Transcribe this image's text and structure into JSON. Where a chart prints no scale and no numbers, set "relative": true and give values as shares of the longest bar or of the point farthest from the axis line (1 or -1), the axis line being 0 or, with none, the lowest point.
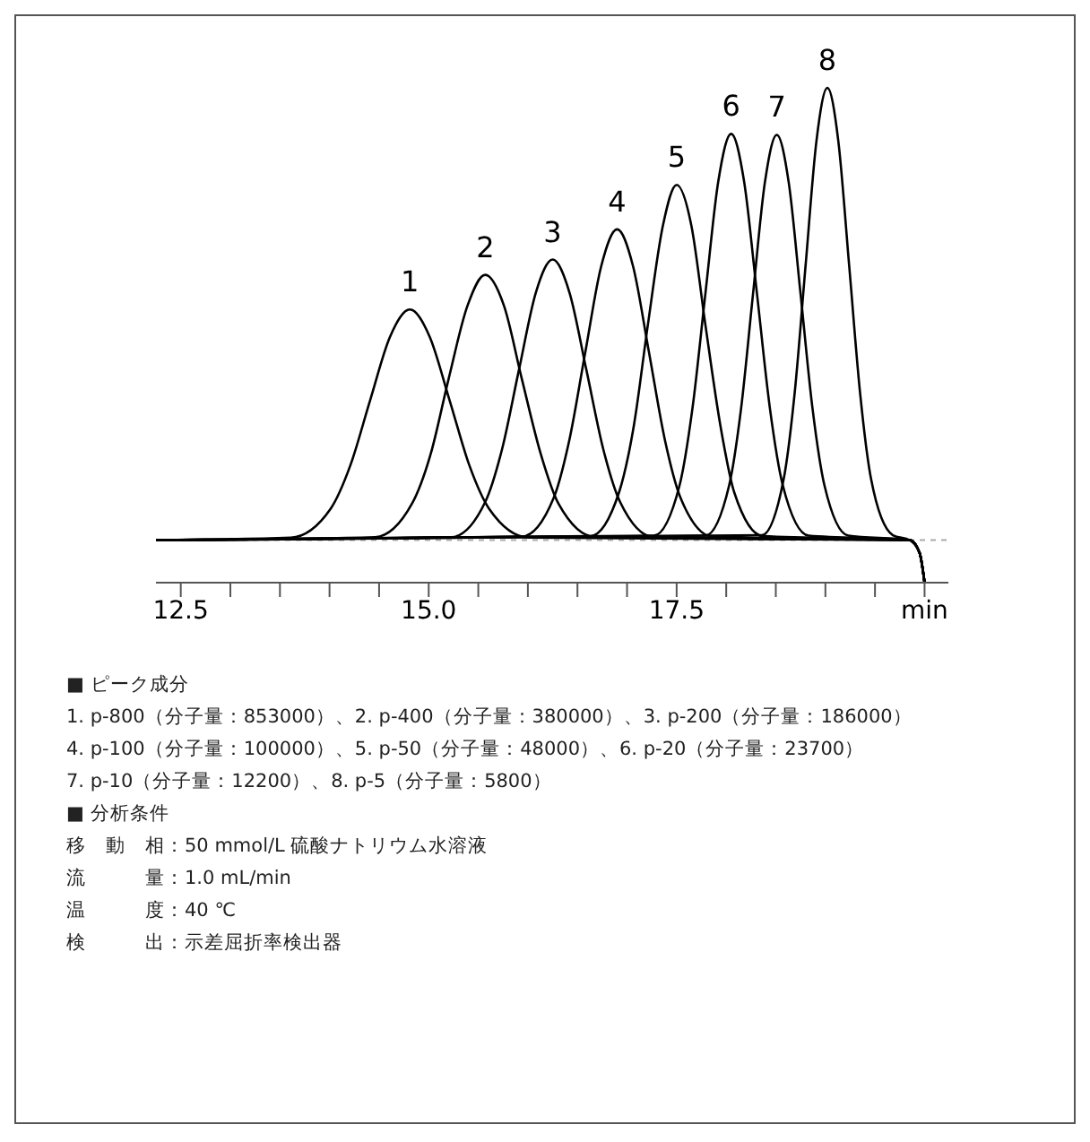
{
  "chart_data": {
    "type": "line",
    "relative": true,
    "xlim": [
      12.25,
      20.24
    ],
    "xticks": [
      12.5,
      {
        "value": 13,
        "label": null
      },
      {
        "value": 13.5,
        "label": null
      },
      {
        "value": 14,
        "label": null
      },
      {
        "value": 14.5,
        "label": null
      },
      {
        "value": 15,
        "label": "15.0"
      },
      {
        "value": 15.5,
        "label": null
      },
      {
        "value": 16,
        "label": null
      },
      {
        "value": 16.5,
        "label": null
      },
      {
        "value": 17,
        "label": null
      },
      17.5,
      {
        "value": 18,
        "label": null
      },
      {
        "value": 18.5,
        "label": null
      },
      {
        "value": 19,
        "label": null
      },
      {
        "value": 19.5,
        "label": null
      },
      {
        "value": 20,
        "label": "min"
      }
    ],
    "marker": "none",
    "line_style": "solid",
    "series": [
      {
        "color": "#000000",
        "x": [
          12.25,
          13.61,
          14.01,
          14.21,
          14.41,
          14.61,
          14.81,
          15.01,
          15.21,
          15.41,
          15.61,
          16.01,
          19.85,
          19.95,
          20.0
        ],
        "values": [
          0.086,
          0.091,
          0.149,
          0.237,
          0.369,
          0.497,
          0.552,
          0.497,
          0.369,
          0.237,
          0.149,
          0.091,
          0.086,
          0.06,
          0
        ]
      },
      {
        "color": "#000000",
        "x": [
          12.25,
          14.46,
          14.83,
          15.02,
          15.2,
          15.39,
          15.57,
          15.76,
          15.94,
          16.13,
          16.31,
          16.68,
          19.85,
          19.95,
          20.0
        ],
        "values": [
          0.086,
          0.092,
          0.159,
          0.26,
          0.411,
          0.559,
          0.622,
          0.559,
          0.411,
          0.26,
          0.159,
          0.092,
          0.086,
          0.06,
          0
        ]
      },
      {
        "color": "#000000",
        "x": [
          12.25,
          15.23,
          15.57,
          15.74,
          15.91,
          16.08,
          16.25,
          16.42,
          16.59,
          16.76,
          16.93,
          17.27,
          19.85,
          19.95,
          20.0
        ],
        "values": [
          0.086,
          0.092,
          0.163,
          0.27,
          0.43,
          0.586,
          0.653,
          0.586,
          0.43,
          0.27,
          0.163,
          0.092,
          0.086,
          0.06,
          0
        ]
      },
      {
        "color": "#000000",
        "x": [
          12.25,
          15.94,
          16.26,
          16.42,
          16.58,
          16.74,
          16.9,
          17.06,
          17.22,
          17.38,
          17.54,
          17.86,
          19.85,
          19.95,
          20.0
        ],
        "values": [
          0.086,
          0.093,
          0.171,
          0.29,
          0.467,
          0.64,
          0.714,
          0.64,
          0.467,
          0.29,
          0.171,
          0.093,
          0.086,
          0.06,
          0
        ]
      },
      {
        "color": "#000000",
        "x": [
          12.25,
          16.63,
          16.92,
          17.07,
          17.21,
          17.36,
          17.5,
          17.65,
          17.79,
          17.94,
          18.08,
          18.37,
          19.85,
          19.95,
          20.0
        ],
        "values": [
          0.086,
          0.094,
          0.183,
          0.319,
          0.521,
          0.72,
          0.804,
          0.72,
          0.521,
          0.319,
          0.183,
          0.094,
          0.086,
          0.06,
          0
        ]
      },
      {
        "color": "#000000",
        "x": [
          12.25,
          17.27,
          17.53,
          17.66,
          17.79,
          17.92,
          18.05,
          18.18,
          18.31,
          18.44,
          18.57,
          18.83,
          19.85,
          19.95,
          20.0
        ],
        "values": [
          0.086,
          0.095,
          0.197,
          0.353,
          0.584,
          0.811,
          0.907,
          0.811,
          0.584,
          0.353,
          0.197,
          0.095,
          0.086,
          0.06,
          0
        ]
      },
      {
        "color": "#000000",
        "x": [
          12.25,
          17.79,
          18.03,
          18.15,
          18.27,
          18.39,
          18.51,
          18.63,
          18.75,
          18.87,
          18.99,
          19.23,
          19.85,
          19.95,
          20.0
        ],
        "values": [
          0.086,
          0.095,
          0.197,
          0.352,
          0.583,
          0.809,
          0.905,
          0.809,
          0.583,
          0.352,
          0.197,
          0.095,
          0.086,
          0.06,
          0
        ]
      },
      {
        "color": "#000000",
        "x": [
          12.25,
          18.36,
          18.58,
          18.69,
          18.8,
          18.91,
          19.02,
          19.13,
          19.24,
          19.35,
          19.46,
          19.68,
          19.85,
          19.95,
          20.0
        ],
        "values": [
          0.086,
          0.096,
          0.21,
          0.383,
          0.64,
          0.893,
          1,
          0.893,
          0.64,
          0.383,
          0.21,
          0.096,
          0.086,
          0.06,
          0
        ]
      }
    ],
    "ref_lines": [
      {
        "axis": "y",
        "value": 0.086,
        "color": "#aaaaaa",
        "line_style": "dashed"
      }
    ],
    "annotations": [
      {
        "text": "1",
        "x": 14.81,
        "y": 0.552
      },
      {
        "text": "2",
        "x": 15.57,
        "y": 0.622
      },
      {
        "text": "3",
        "x": 16.25,
        "y": 0.653
      },
      {
        "text": "4",
        "x": 16.9,
        "y": 0.714
      },
      {
        "text": "5",
        "x": 17.5,
        "y": 0.804
      },
      {
        "text": "6",
        "x": 18.05,
        "y": 0.907
      },
      {
        "text": "7",
        "x": 18.51,
        "y": 0.905
      },
      {
        "text": "8",
        "x": 19.02,
        "y": 1
      },
      "■ ピーク成分",
      "1. p-800（分子量：853000）、2. p-400（分子量：380000）、3. p-200（分子量：186000）",
      "4. p-100（分子量：100000）、5. p-50（分子量：48000）、6. p-20（分子量：23700）",
      "7. p-10（分子量：12200）、8. p-5（分子量：5800）",
      "■ 分析条件",
      "移　動　相：50 mmol/L 硫酸ナトリウム水溶液",
      "流　　　量：1.0 mL/min",
      "温　　　度：40 ℃",
      "検　　　出：示差屈折率検出器"
    ]
  }
}
